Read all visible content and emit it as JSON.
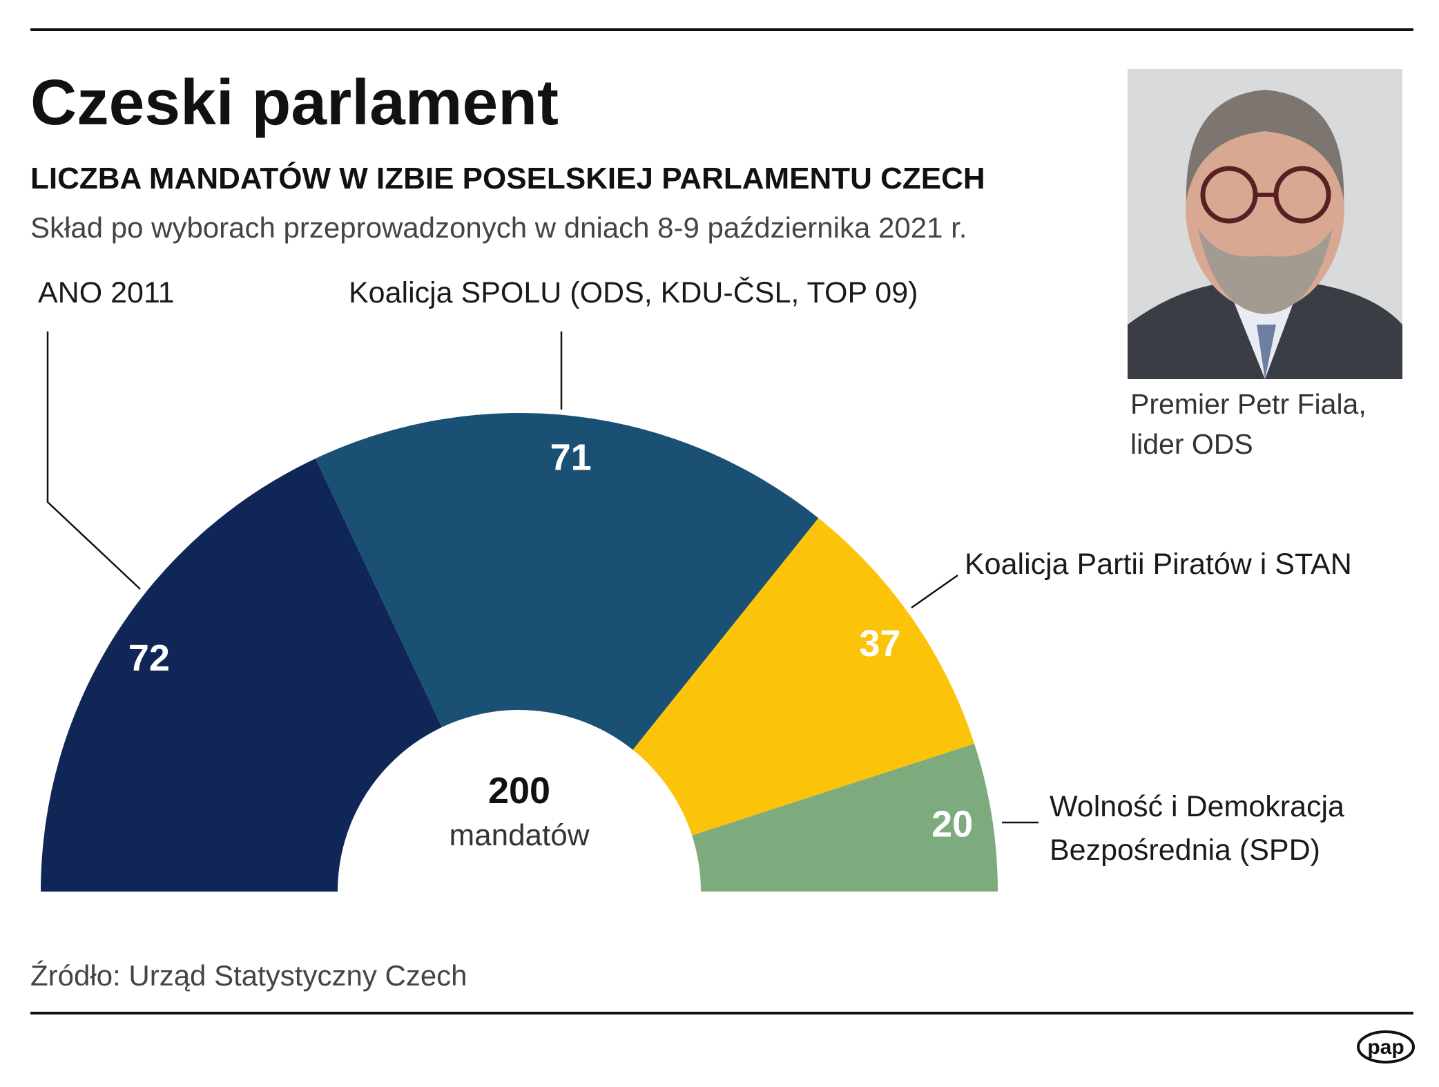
{
  "chart_data": {
    "type": "semicircle",
    "title": "Czeski parlament",
    "subtitle": "LICZBA MANDATÓW W IZBIE POSELSKIEJ PARLAMENTU CZECH",
    "description": "Skład po wyborach przeprowadzonych w dniach 8-9 października 2021 r.",
    "categories": [
      "ANO 2011",
      "Koalicja SPOLU (ODS, KDU-ČSL, TOP 09)",
      "Koalicja Partii Piratów i STAN",
      "Wolność i Demokracja Bezpośrednia (SPD)"
    ],
    "values": [
      72,
      71,
      37,
      20
    ],
    "colors": [
      "#0f2656",
      "#1b5075",
      "#fcc30b",
      "#7dab7d"
    ],
    "center_value": 200,
    "center_label": "mandatów",
    "source": "Źródło: Urząd Statystyczny Czech"
  },
  "photo_caption": "Premier Petr Fiala, lider ODS",
  "logo": "pap"
}
